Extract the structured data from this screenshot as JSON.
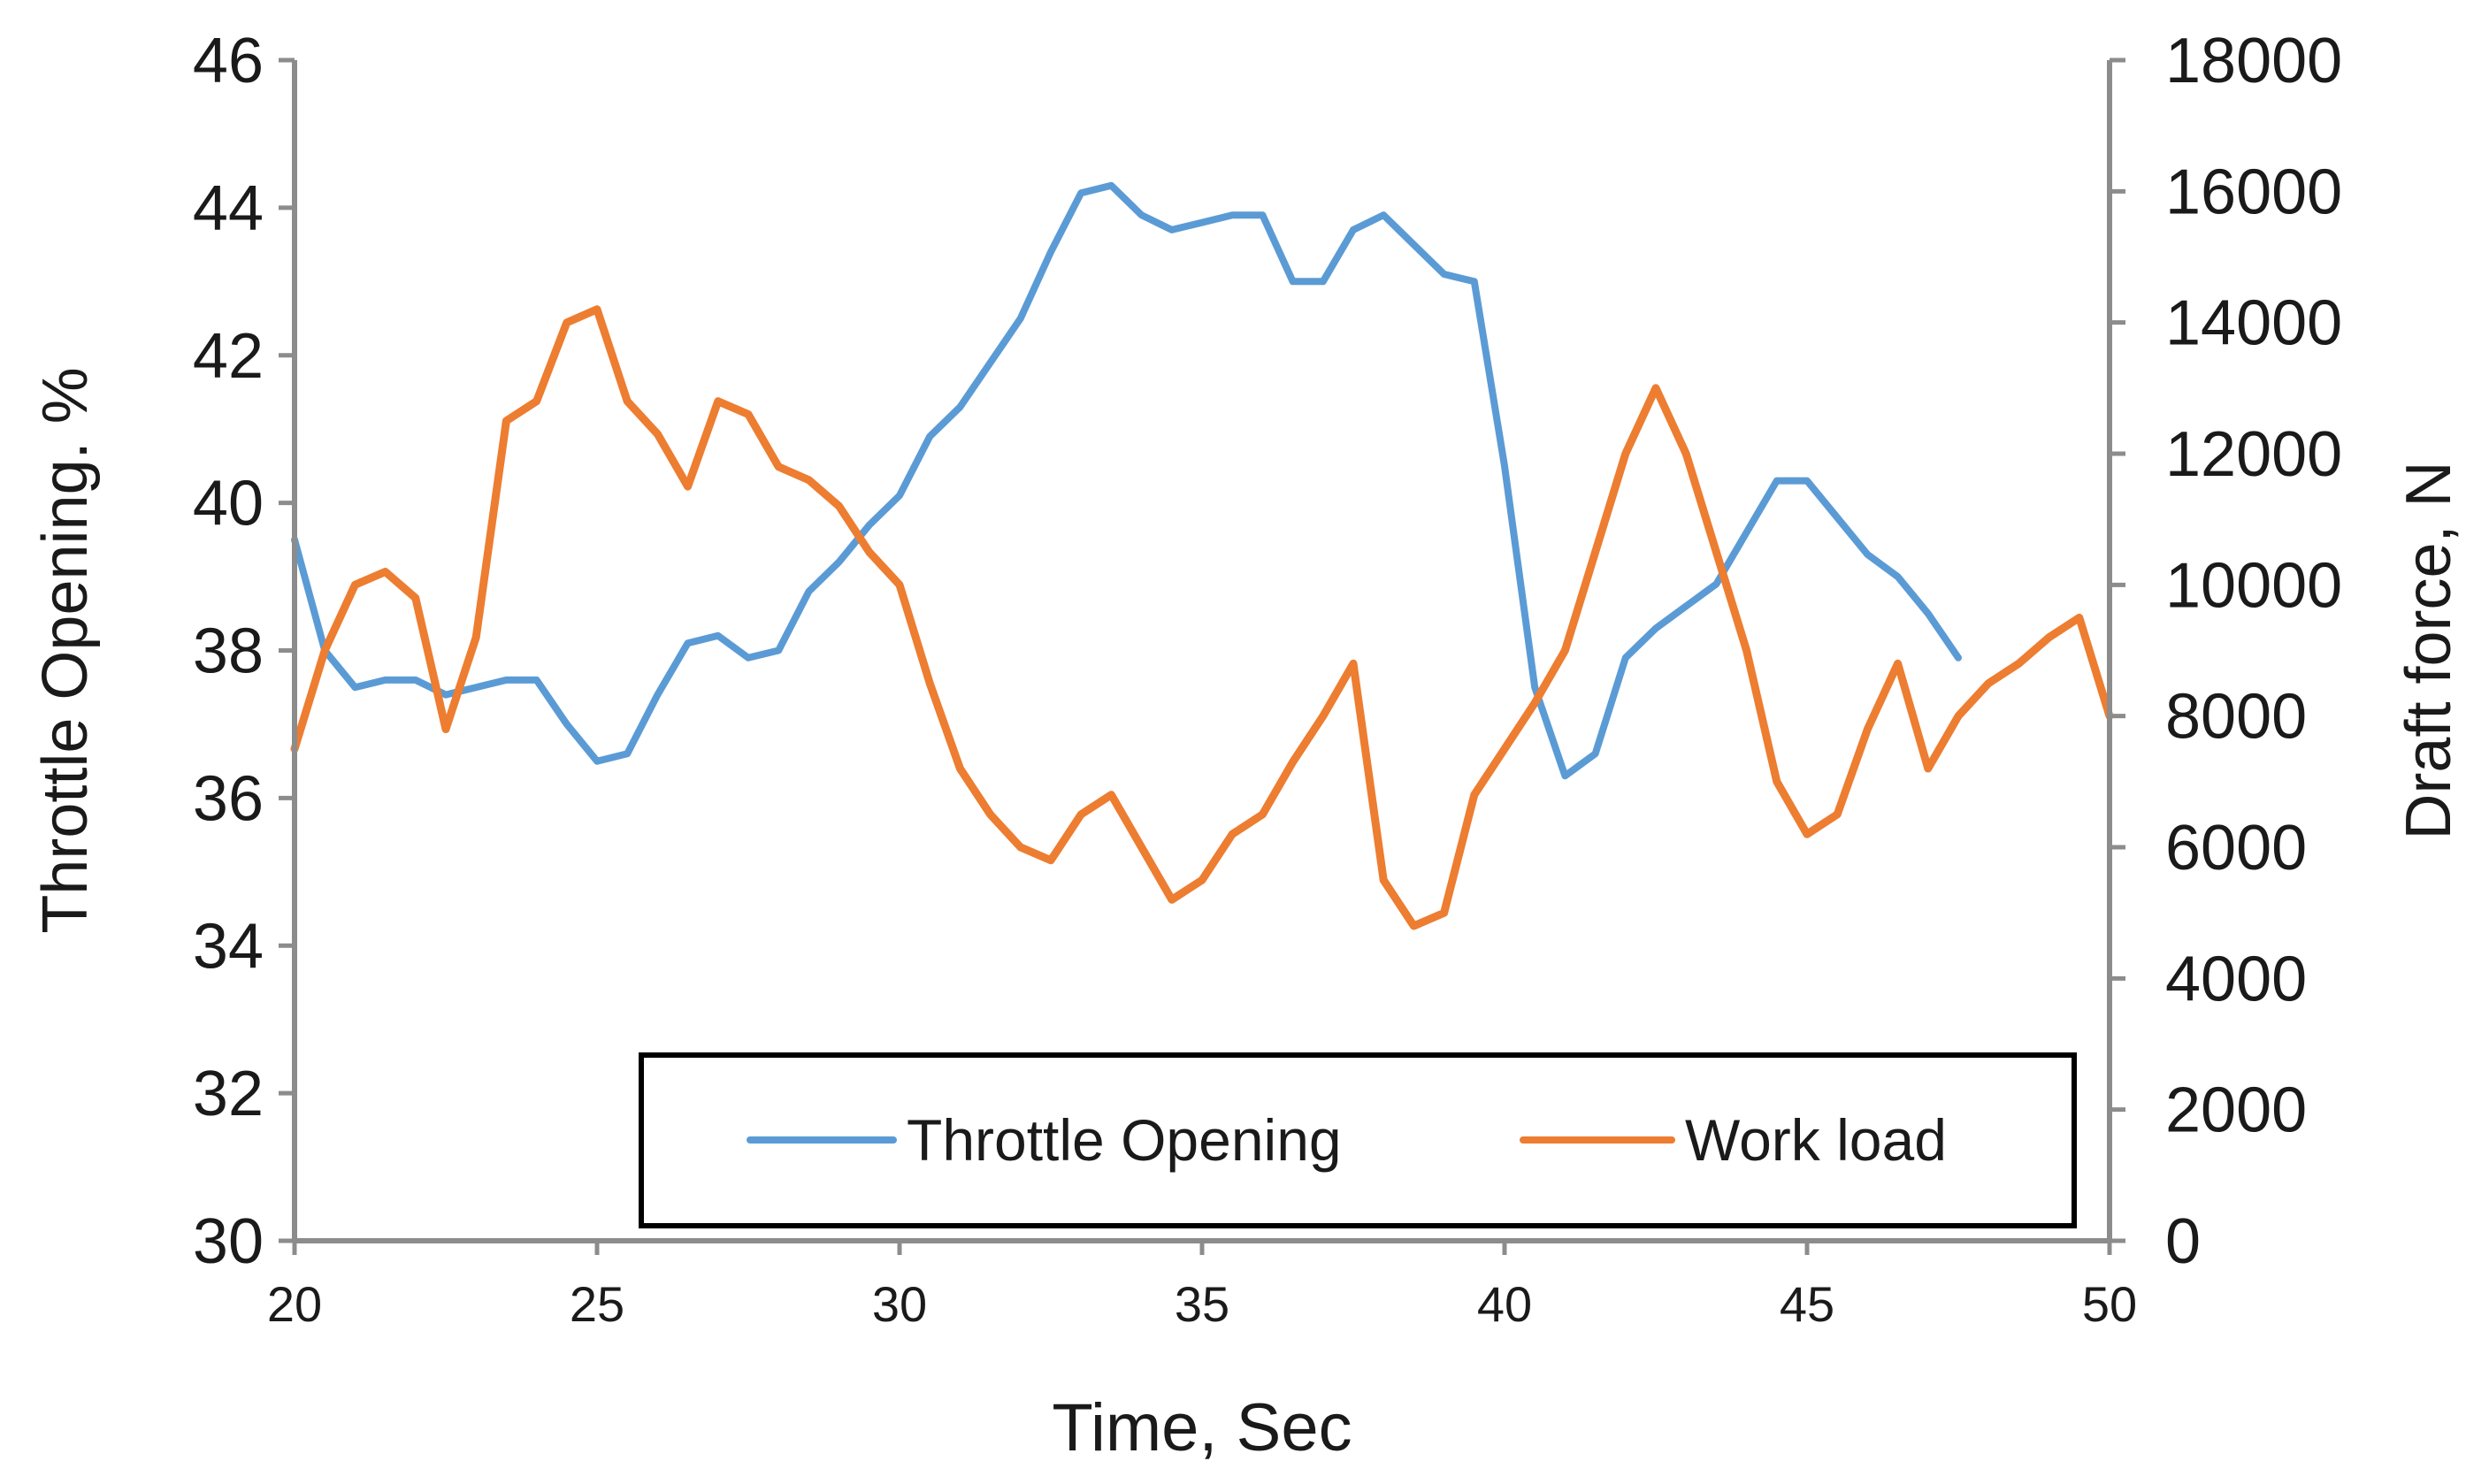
{
  "chart_data": {
    "type": "line",
    "xlabel": "Time, Sec",
    "ylabel_left": "Throttle Opening. %",
    "ylabel_right": "Draft force, N",
    "xlim": [
      20,
      50
    ],
    "ylim_left": [
      30,
      46
    ],
    "ylim_right": [
      0,
      18000
    ],
    "x_ticks": [
      "20",
      "25",
      "30",
      "35",
      "40",
      "45",
      "50"
    ],
    "y_left_ticks": [
      "30",
      "32",
      "34",
      "36",
      "38",
      "40",
      "42",
      "44",
      "46"
    ],
    "y_right_ticks": [
      "0",
      "2000",
      "4000",
      "6000",
      "8000",
      "10000",
      "12000",
      "14000",
      "16000",
      "18000"
    ],
    "grid": false,
    "legend_position": "bottom-center",
    "series": [
      {
        "name": "Throttle Opening",
        "axis": "left",
        "color": "#5b9bd5",
        "x": [
          20,
          20.5,
          21,
          21.5,
          22,
          22.5,
          23,
          23.5,
          24,
          24.5,
          25,
          25.5,
          26,
          26.5,
          27,
          27.5,
          28,
          28.5,
          29,
          29.5,
          30,
          30.5,
          31,
          31.5,
          32,
          32.5,
          33,
          33.5,
          34,
          34.5,
          35,
          35.5,
          36,
          36.5,
          37,
          37.5,
          38,
          38.5,
          39,
          39.5,
          40,
          40.5,
          41,
          41.5,
          42,
          42.5,
          43,
          43.5,
          44,
          44.5,
          45,
          45.5,
          46,
          46.5,
          47,
          47.5
        ],
        "values": [
          39.5,
          38.0,
          37.5,
          37.6,
          37.6,
          37.4,
          37.5,
          37.6,
          37.6,
          37.0,
          36.5,
          36.6,
          37.4,
          38.1,
          38.2,
          37.9,
          38.0,
          38.8,
          39.2,
          39.7,
          40.1,
          40.9,
          41.3,
          41.9,
          42.5,
          43.4,
          44.2,
          44.3,
          43.9,
          43.7,
          43.8,
          43.9,
          43.9,
          43.0,
          43.0,
          43.7,
          43.9,
          43.5,
          43.1,
          43.0,
          40.5,
          37.5,
          36.3,
          36.6,
          37.9,
          38.3,
          38.6,
          38.9,
          39.6,
          40.3,
          40.3,
          39.8,
          39.3,
          39.0,
          38.5,
          37.9
        ]
      },
      {
        "name": "Work load",
        "axis": "right",
        "color": "#ed7d31",
        "x": [
          20,
          20.5,
          21,
          21.5,
          22,
          22.5,
          23,
          23.5,
          24,
          24.5,
          25,
          25.5,
          26,
          26.5,
          27,
          27.5,
          28,
          28.5,
          29,
          29.5,
          30,
          30.5,
          31,
          31.5,
          32,
          32.5,
          33,
          33.5,
          34,
          34.5,
          35,
          35.5,
          36,
          36.5,
          37,
          37.5,
          38,
          38.5,
          39,
          39.5,
          40,
          40.5,
          41,
          41.5,
          42,
          42.5,
          43,
          43.5,
          44,
          44.5,
          45,
          45.5,
          46,
          46.5,
          47,
          47.5,
          48,
          48.5,
          49,
          49.5,
          50
        ],
        "values": [
          7500,
          9000,
          10000,
          10200,
          9800,
          7800,
          9200,
          12500,
          12800,
          14000,
          14200,
          12800,
          12300,
          11500,
          12800,
          12600,
          11800,
          11600,
          11200,
          10500,
          10000,
          8500,
          7200,
          6500,
          6000,
          5800,
          6500,
          6800,
          6000,
          5200,
          5500,
          6200,
          6500,
          7300,
          8000,
          8800,
          5500,
          4800,
          5000,
          6800,
          7500,
          8200,
          9000,
          10500,
          12000,
          13000,
          12000,
          10500,
          9000,
          7000,
          6200,
          6500,
          7800,
          8800,
          7200,
          8000,
          8500,
          8800,
          9200,
          9500,
          8000
        ]
      }
    ]
  }
}
